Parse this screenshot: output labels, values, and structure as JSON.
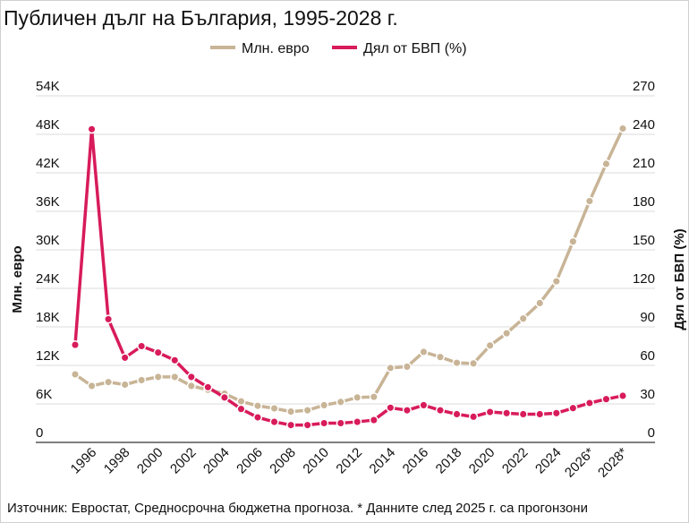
{
  "chart_data": {
    "type": "line",
    "title": "Публичен дълг на България, 1995-2028 г.",
    "ylabel_left": "Млн. евро",
    "ylabel_right": "Дял от БВП (%)",
    "ylim_left": [
      0,
      54000
    ],
    "ylim_right": [
      0,
      270
    ],
    "yticks_left": [
      "0",
      "6K",
      "12K",
      "18K",
      "24K",
      "30K",
      "36K",
      "42K",
      "48K",
      "54K"
    ],
    "yticks_right": [
      "0",
      "30",
      "60",
      "90",
      "120",
      "150",
      "180",
      "210",
      "240",
      "270"
    ],
    "grid": true,
    "legend_position": "top-center",
    "x": [
      1995,
      1996,
      1997,
      1998,
      1999,
      2000,
      2001,
      2002,
      2003,
      2004,
      2005,
      2006,
      2007,
      2008,
      2009,
      2010,
      2011,
      2012,
      2013,
      2014,
      2015,
      2016,
      2017,
      2018,
      2019,
      2020,
      2021,
      2022,
      2023,
      2024,
      2025,
      2026,
      2027,
      2028
    ],
    "xtick_labels": [
      "1996",
      "1998",
      "2000",
      "2002",
      "2004",
      "2006",
      "2008",
      "2010",
      "2012",
      "2014",
      "2016",
      "2018",
      "2020",
      "2022",
      "2024",
      "2026*",
      "2028*"
    ],
    "series": [
      {
        "name": "Млн. евро",
        "axis": "left",
        "color": "#c8b496",
        "values": [
          10600,
          8800,
          9400,
          9000,
          9700,
          10200,
          10200,
          8800,
          8200,
          7600,
          6400,
          5700,
          5300,
          4800,
          5000,
          5800,
          6300,
          7000,
          7100,
          11600,
          11800,
          14100,
          13300,
          12400,
          12300,
          15100,
          17000,
          19300,
          21700,
          25100,
          31300,
          37600,
          43400,
          48900
        ]
      },
      {
        "name": "Дял от БВП (%)",
        "axis": "right",
        "color": "#d81b5a",
        "values": [
          76,
          244,
          96,
          66,
          75,
          70,
          64,
          51,
          43,
          35,
          26,
          19.5,
          16,
          13.5,
          13.5,
          15,
          15,
          16,
          17.4,
          27,
          25,
          29,
          25,
          22,
          20,
          23.7,
          22.8,
          22,
          22,
          22.8,
          26.7,
          30.7,
          33.7,
          36.3
        ]
      }
    ],
    "source_note": "Източник: Евростат, Средносрочна бюджетна прогноза. * Данните след 2025 г. са прогонзони"
  }
}
